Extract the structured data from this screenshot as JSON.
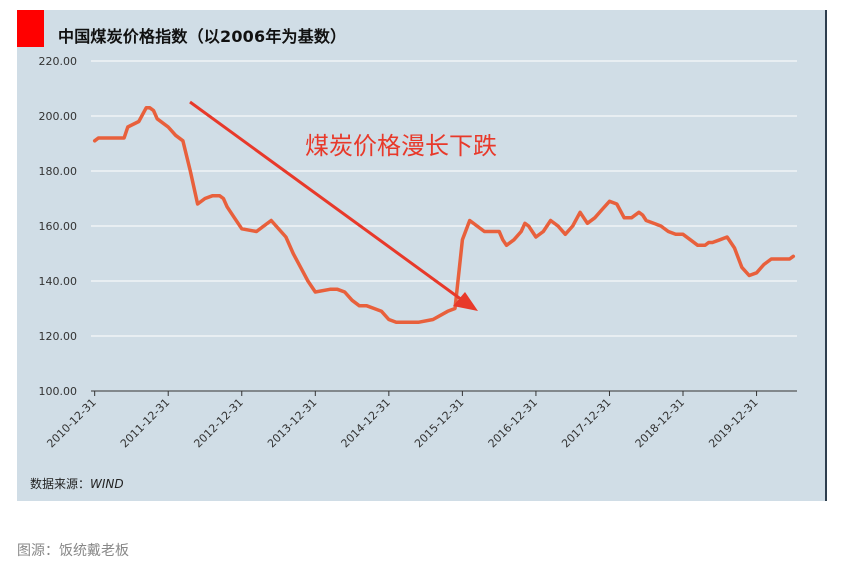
{
  "caption": "图源：饭统戴老板",
  "chart_data": {
    "type": "line",
    "title": "中国煤炭价格指数（以2006年为基数）",
    "annotation": "煤炭价格漫长下跌",
    "source_label": "数据来源：",
    "source_value": "WIND",
    "ylim": [
      100,
      220
    ],
    "yticks": [
      "100.00",
      "120.00",
      "140.00",
      "160.00",
      "180.00",
      "200.00",
      "220.00"
    ],
    "xticks": [
      "2010-12-31",
      "2011-12-31",
      "2012-12-31",
      "2013-12-31",
      "2014-12-31",
      "2015-12-31",
      "2016-12-31",
      "2017-12-31",
      "2018-12-31",
      "2019-12-31"
    ],
    "grid": true,
    "line_color": "#e8603c",
    "arrow_color": "#e8392a",
    "series": [
      {
        "x": [
          2011.0,
          2011.05,
          2011.4,
          2011.45,
          2011.6,
          2011.7,
          2011.75,
          2011.8,
          2011.85,
          2012.0,
          2012.1,
          2012.2,
          2012.3,
          2012.4,
          2012.5,
          2012.6,
          2012.7,
          2012.75,
          2012.8,
          2012.9,
          2013.0,
          2013.2,
          2013.3,
          2013.4,
          2013.6,
          2013.7,
          2013.8,
          2013.9,
          2014.0,
          2014.2,
          2014.3,
          2014.4,
          2014.5,
          2014.6,
          2014.7,
          2014.8,
          2014.9,
          2015.0,
          2015.1,
          2015.2,
          2015.3,
          2015.4,
          2015.6,
          2015.8,
          2015.9,
          2016.0,
          2016.1,
          2016.3,
          2016.5,
          2016.55,
          2016.6,
          2016.7,
          2016.8,
          2016.85,
          2016.9,
          2017.0,
          2017.1,
          2017.2,
          2017.3,
          2017.4,
          2017.5,
          2017.6,
          2017.7,
          2017.8,
          2017.9,
          2018.0,
          2018.1,
          2018.2,
          2018.3,
          2018.4,
          2018.45,
          2018.5,
          2018.6,
          2018.7,
          2018.8,
          2018.9,
          2019.0,
          2019.1,
          2019.2,
          2019.3,
          2019.35,
          2019.4,
          2019.5,
          2019.6,
          2019.7,
          2019.8,
          2019.9,
          2020.0,
          2020.1,
          2020.2,
          2020.3,
          2020.4,
          2020.45,
          2020.5
        ],
        "y": [
          191,
          192,
          192,
          196,
          198,
          203,
          203,
          202,
          199,
          196,
          193,
          191,
          180,
          168,
          170,
          171,
          171,
          170,
          167,
          163,
          159,
          158,
          160,
          162,
          156,
          150,
          145,
          140,
          136,
          137,
          137,
          136,
          133,
          131,
          131,
          130,
          129,
          126,
          125,
          125,
          125,
          125,
          126,
          129,
          130,
          155,
          162,
          158,
          158,
          155,
          153,
          155,
          158,
          161,
          160,
          156,
          158,
          162,
          160,
          157,
          160,
          165,
          161,
          163,
          166,
          169,
          168,
          163,
          163,
          165,
          164,
          162,
          161,
          160,
          158,
          157,
          157,
          155,
          153,
          153,
          154,
          154,
          155,
          156,
          152,
          145,
          142,
          143,
          146,
          148,
          148,
          148,
          148,
          149
        ]
      }
    ]
  }
}
